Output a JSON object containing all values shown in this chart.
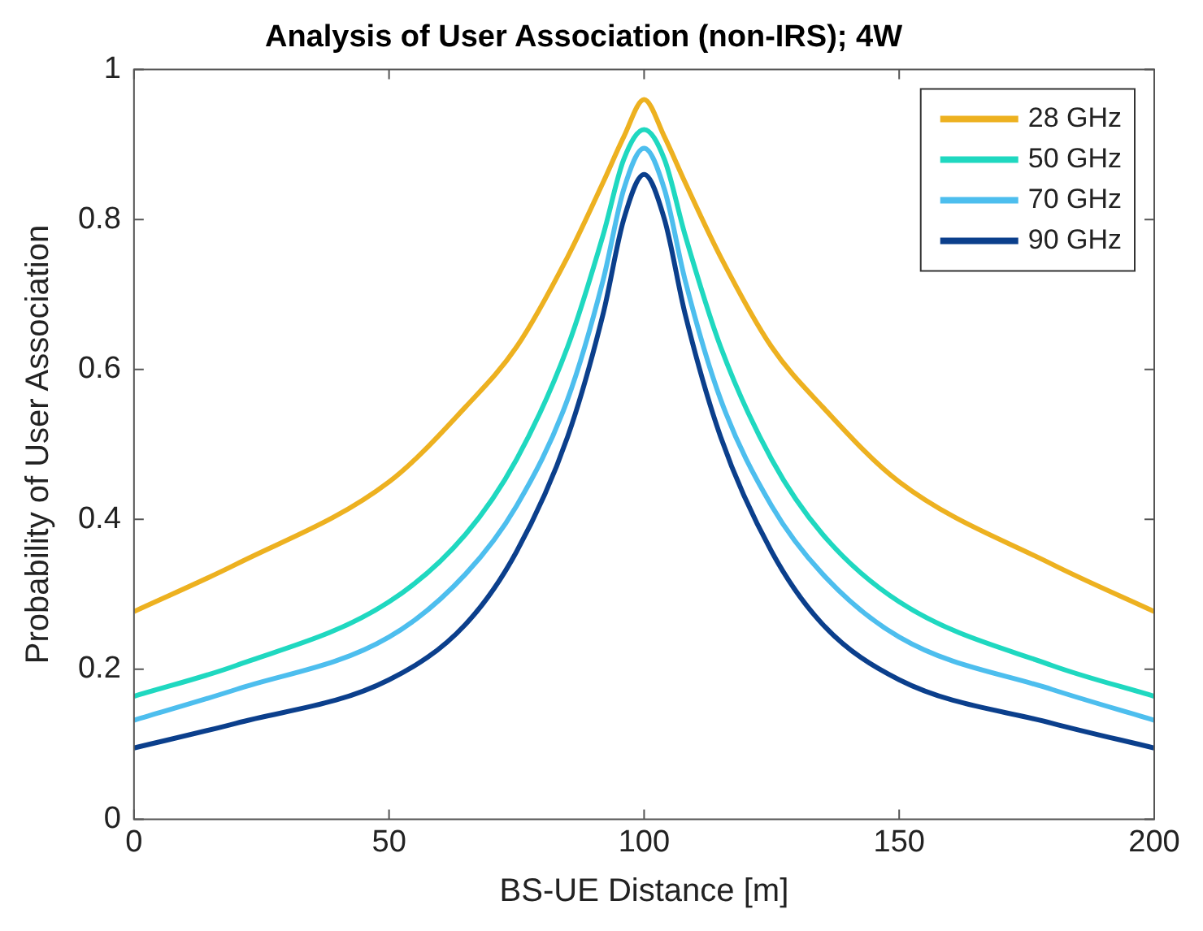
{
  "chart_data": {
    "type": "line",
    "title": "Analysis of User Association (non-IRS); 4W",
    "xlabel": "BS-UE Distance [m]",
    "ylabel": "Probability of User Association",
    "x": [
      0,
      20,
      50,
      65,
      75,
      85,
      92,
      96,
      100,
      104,
      108,
      115,
      125,
      135,
      150,
      180,
      200
    ],
    "series": [
      {
        "name": "28 GHz",
        "color": "#edb120",
        "values": [
          0.277,
          0.34,
          0.45,
          0.55,
          0.63,
          0.75,
          0.85,
          0.91,
          0.96,
          0.91,
          0.85,
          0.75,
          0.63,
          0.55,
          0.45,
          0.34,
          0.277
        ]
      },
      {
        "name": "50 GHz",
        "color": "#1fd8c0",
        "values": [
          0.164,
          0.205,
          0.29,
          0.38,
          0.48,
          0.63,
          0.78,
          0.88,
          0.92,
          0.88,
          0.78,
          0.63,
          0.48,
          0.38,
          0.29,
          0.205,
          0.164
        ]
      },
      {
        "name": "70 GHz",
        "color": "#4dbeee",
        "values": [
          0.132,
          0.173,
          0.243,
          0.327,
          0.418,
          0.56,
          0.72,
          0.84,
          0.895,
          0.84,
          0.72,
          0.56,
          0.418,
          0.327,
          0.243,
          0.173,
          0.132
        ]
      },
      {
        "name": "90 GHz",
        "color": "#0b3f8c",
        "values": [
          0.095,
          0.128,
          0.186,
          0.26,
          0.357,
          0.51,
          0.675,
          0.8,
          0.86,
          0.8,
          0.675,
          0.51,
          0.357,
          0.26,
          0.186,
          0.128,
          0.095
        ]
      }
    ],
    "xlim": [
      0,
      200
    ],
    "xticks": [
      0,
      50,
      100,
      150,
      200
    ],
    "ylim": [
      0,
      1
    ],
    "yticks": [
      0,
      0.2,
      0.4,
      0.6,
      0.8,
      1
    ],
    "grid": false,
    "legend": "top right",
    "marker": "none",
    "line_style": "solid"
  }
}
